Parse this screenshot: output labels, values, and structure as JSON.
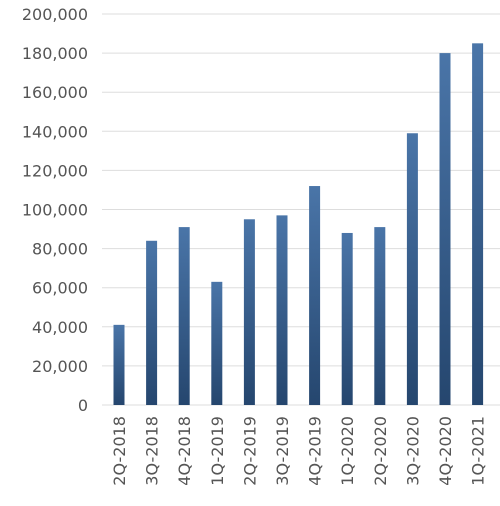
{
  "chart_data": {
    "type": "bar",
    "title": "",
    "xlabel": "",
    "ylabel": "",
    "categories": [
      "2Q-2018",
      "3Q-2018",
      "4Q-2018",
      "1Q-2019",
      "2Q-2019",
      "3Q-2019",
      "4Q-2019",
      "1Q-2020",
      "2Q-2020",
      "3Q-2020",
      "4Q-2020",
      "1Q-2021"
    ],
    "values": [
      41000,
      84000,
      91000,
      63000,
      95000,
      97000,
      112000,
      88000,
      91000,
      139000,
      180000,
      185000
    ],
    "ylim": [
      0,
      200000
    ],
    "yticks": [
      0,
      20000,
      40000,
      60000,
      80000,
      100000,
      120000,
      140000,
      160000,
      180000,
      200000
    ],
    "ytick_labels": [
      "0",
      "20,000",
      "40,000",
      "60,000",
      "80,000",
      "100,000",
      "120,000",
      "140,000",
      "160,000",
      "180,000",
      "200,000"
    ],
    "grid": true,
    "legend": "none",
    "colors": {
      "bar_top": "#4a75a8",
      "bar_bottom": "#25466e",
      "grid": "#dddddd",
      "text": "#555555"
    }
  }
}
